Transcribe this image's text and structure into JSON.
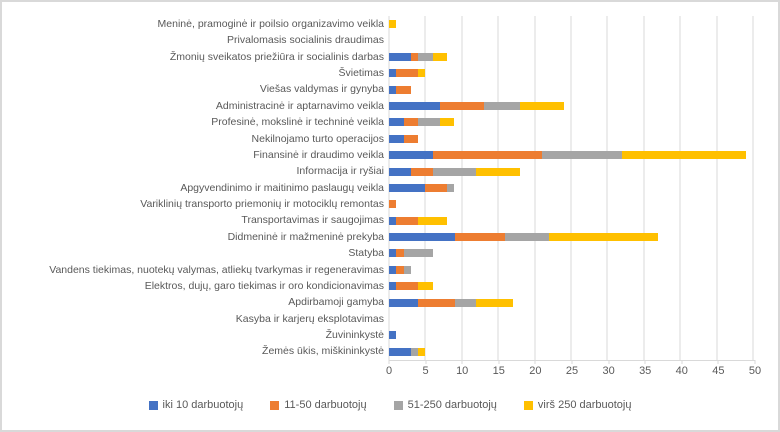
{
  "chart_data": {
    "type": "bar",
    "orientation": "horizontal",
    "stacked": true,
    "title": "",
    "xlabel": "",
    "ylabel": "",
    "xlim": [
      0,
      50
    ],
    "x_ticks": [
      0,
      5,
      10,
      15,
      20,
      25,
      30,
      35,
      40,
      45,
      50
    ],
    "grid": "vertical",
    "legend_position": "bottom",
    "categories": [
      "Meninė, pramoginė ir poilsio organizavimo veikla",
      "Privalomasis socialinis draudimas",
      "Žmonių sveikatos priežiūra ir socialinis darbas",
      "Švietimas",
      "Viešas valdymas ir gynyba",
      "Administracinė ir aptarnavimo veikla",
      "Profesinė, mokslinė ir techninė veikla",
      "Nekilnojamo turto operacijos",
      "Finansinė ir draudimo veikla",
      "Informacija ir ryšiai",
      "Apgyvendinimo ir maitinimo paslaugų veikla",
      "Variklinių transporto priemonių ir motociklų remontas",
      "Transportavimas ir saugojimas",
      "Didmeninė ir mažmeninė prekyba",
      "Statyba",
      "Vandens tiekimas, nuotekų valymas, atliekų tvarkymas ir regeneravimas",
      "Elektros, dujų, garo tiekimas ir oro kondicionavimas",
      "Apdirbamoji gamyba",
      "Kasyba ir karjerų eksplotavimas",
      "Žuvininkystė",
      "Žemės ūkis, miškininkystė"
    ],
    "series": [
      {
        "name": "iki 10 darbuotojų",
        "color": "#4472C4",
        "values": [
          0,
          0,
          3,
          1,
          1,
          7,
          2,
          2,
          6,
          3,
          5,
          0,
          1,
          9,
          1,
          1,
          1,
          4,
          0,
          1,
          3
        ]
      },
      {
        "name": "11-50 darbuotojų",
        "color": "#ED7D31",
        "values": [
          0,
          0,
          1,
          3,
          2,
          6,
          2,
          2,
          15,
          3,
          3,
          1,
          3,
          7,
          1,
          1,
          3,
          5,
          0,
          0,
          0
        ]
      },
      {
        "name": "51-250 darbuotojų",
        "color": "#A5A5A5",
        "values": [
          0,
          0,
          2,
          0,
          0,
          5,
          3,
          0,
          11,
          6,
          1,
          0,
          0,
          6,
          4,
          1,
          0,
          3,
          0,
          0,
          1
        ]
      },
      {
        "name": "virš 250 darbuotojų",
        "color": "#FFC000",
        "values": [
          1,
          0,
          2,
          1,
          0,
          6,
          2,
          0,
          17,
          6,
          0,
          0,
          4,
          15,
          0,
          0,
          2,
          5,
          0,
          0,
          1
        ]
      }
    ]
  },
  "colors": {
    "background": "#FFFFFF",
    "frame_border": "#D9D9D9",
    "gridline": "#D9D9D9",
    "axis_line": "#D9D9D9",
    "text": "#595959"
  }
}
